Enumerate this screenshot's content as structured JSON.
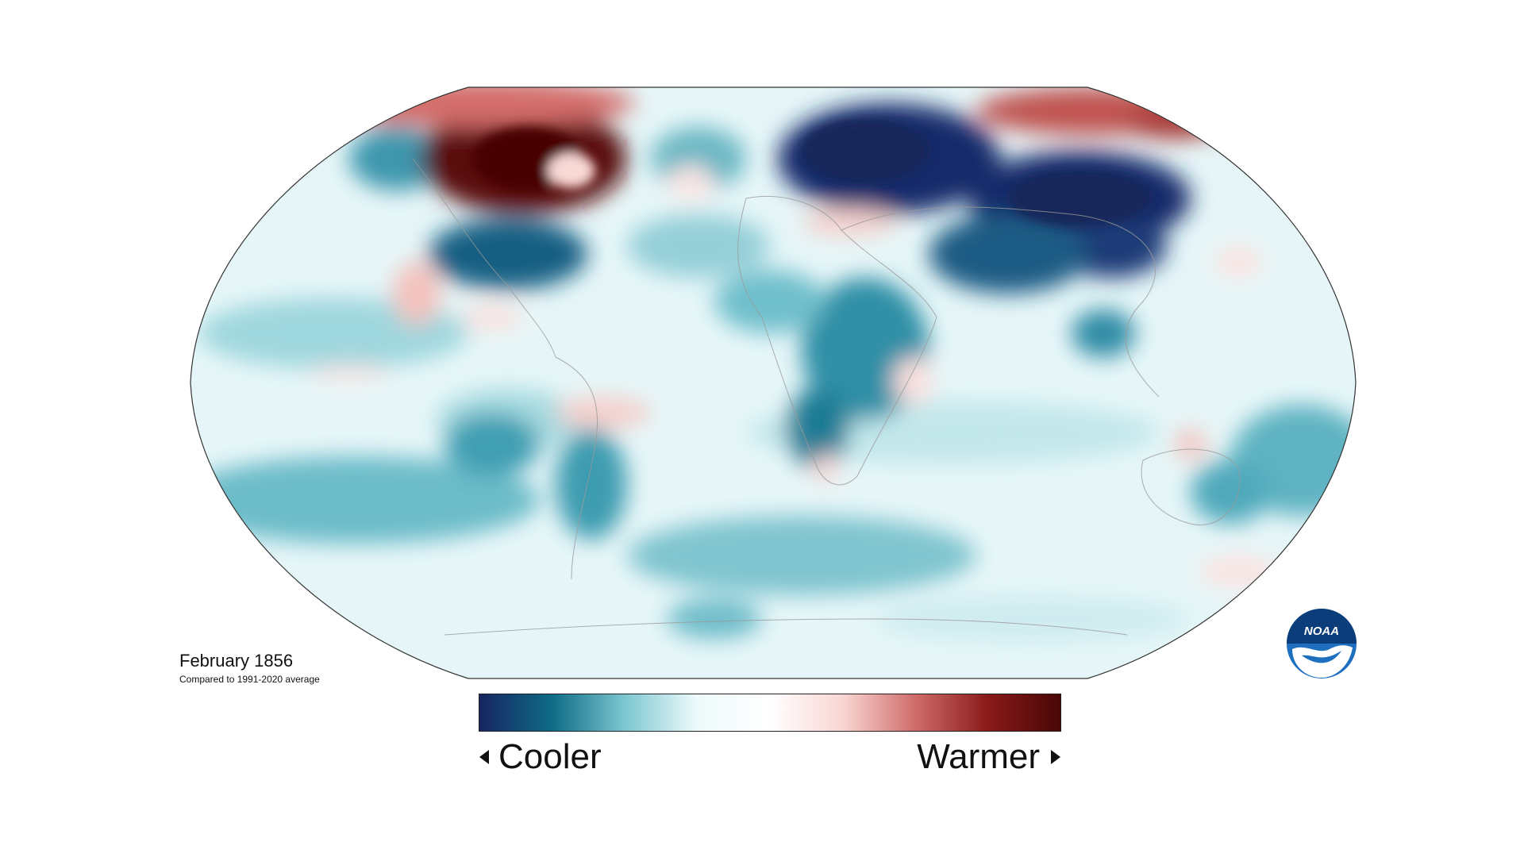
{
  "map": {
    "type": "anomaly-map",
    "projection": "robinson",
    "title": "February 1856",
    "subtitle": "Compared to 1991-2020 average"
  },
  "legend": {
    "colors": [
      "#162560",
      "#0e6b86",
      "#7cc7d1",
      "#eefafb",
      "#ffffff",
      "#f9d6d3",
      "#cf6c6a",
      "#8a1a1a",
      "#4a0606"
    ],
    "low_label": "Cooler",
    "high_label": "Warmer",
    "left_arrow_icon": "triangle-left-icon",
    "right_arrow_icon": "triangle-right-icon"
  },
  "logo": {
    "text": "NOAA",
    "icon": "noaa-logo"
  },
  "colors": {
    "strong_cool": "#162560",
    "cool": "#0e6b86",
    "light_cool": "#7cc7d1",
    "neutral": "#ffffff",
    "light_warm": "#f2b9b3",
    "warm": "#b33c3c",
    "strong_warm": "#5a0808"
  }
}
